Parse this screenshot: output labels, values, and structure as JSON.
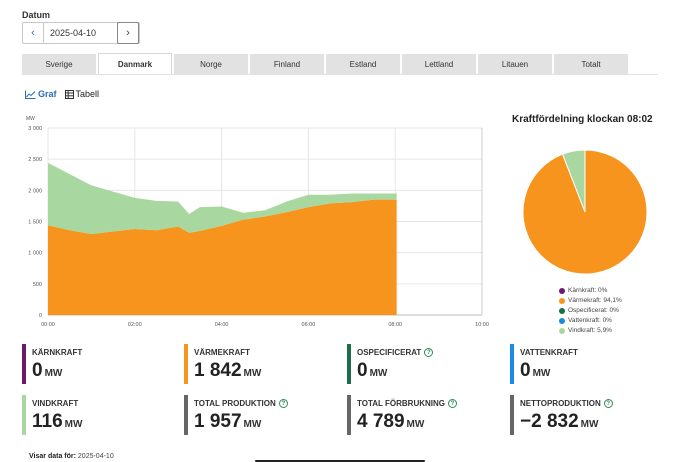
{
  "date": {
    "label": "Datum",
    "value": "2025-04-10",
    "prev_icon": "chevron-left-icon",
    "next_icon": "chevron-right-icon",
    "calendar_icon": "calendar-icon"
  },
  "tabs": [
    {
      "label": "Sverige",
      "active": false
    },
    {
      "label": "Danmark",
      "active": true
    },
    {
      "label": "Norge",
      "active": false
    },
    {
      "label": "Finland",
      "active": false
    },
    {
      "label": "Estland",
      "active": false
    },
    {
      "label": "Lettland",
      "active": false
    },
    {
      "label": "Litauen",
      "active": false
    },
    {
      "label": "Totalt",
      "active": false
    }
  ],
  "view": {
    "graph_label": "Graf",
    "table_label": "Tabell",
    "active": "graph"
  },
  "pie": {
    "title": "Kraftfördelning klockan 08:02",
    "legend": [
      {
        "label": "Kärnkraft: 0%",
        "color": "#6a1b6e"
      },
      {
        "label": "Värmekraft: 94,1%",
        "color": "#f7941d"
      },
      {
        "label": "Ospecificerat: 0%",
        "color": "#1b6e4a"
      },
      {
        "label": "Vattenkraft: 0%",
        "color": "#1e88e5"
      },
      {
        "label": "Vindkraft: 5,9%",
        "color": "#a8d8a0"
      }
    ]
  },
  "cards": [
    {
      "title": "KÄRNKRAFT",
      "value": "0",
      "unit": "MW",
      "color": "#6a1b6e",
      "help": false
    },
    {
      "title": "VÄRMEKRAFT",
      "value": "1 842",
      "unit": "MW",
      "color": "#f7941d",
      "help": false
    },
    {
      "title": "OSPECIFICERAT",
      "value": "0",
      "unit": "MW",
      "color": "#1b6e4a",
      "help": true
    },
    {
      "title": "VATTENKRAFT",
      "value": "0",
      "unit": "MW",
      "color": "#1e88e5",
      "help": false
    },
    {
      "title": "VINDKRAFT",
      "value": "116",
      "unit": "MW",
      "color": "#a8d8a0",
      "help": false
    },
    {
      "title": "TOTAL PRODUKTION",
      "value": "1 957",
      "unit": "MW",
      "color": "#666666",
      "help": true
    },
    {
      "title": "TOTAL FÖRBRUKNING",
      "value": "4 789",
      "unit": "MW",
      "color": "#666666",
      "help": true
    },
    {
      "title": "NETTOPRODUKTION",
      "value": "−2 832",
      "unit": "MW",
      "color": "#666666",
      "help": true
    }
  ],
  "footer": {
    "label": "Visar data för:",
    "date": "2025-04-10"
  },
  "chart_data": [
    {
      "type": "area",
      "stacked": true,
      "ylabel": "MW",
      "ylim": [
        0,
        3000
      ],
      "yticks": [
        "0",
        "500",
        "1 000",
        "1 500",
        "2 000",
        "2 500",
        "3 000"
      ],
      "xticks": [
        "00:00",
        "02:00",
        "04:00",
        "06:00",
        "08:00",
        "10:00"
      ],
      "grid": true,
      "x": [
        "00:00",
        "00:30",
        "01:00",
        "01:30",
        "02:00",
        "02:30",
        "03:00",
        "03:15",
        "03:30",
        "04:00",
        "04:30",
        "05:00",
        "05:30",
        "06:00",
        "06:30",
        "07:00",
        "07:30",
        "08:00",
        "08:02"
      ],
      "series": [
        {
          "color": "#f7941d",
          "values": [
            1440,
            1360,
            1300,
            1340,
            1380,
            1360,
            1420,
            1320,
            1350,
            1430,
            1530,
            1580,
            1650,
            1730,
            1790,
            1810,
            1850,
            1850,
            1842
          ]
        },
        {
          "color": "#a8d8a0",
          "values": [
            1000,
            900,
            780,
            640,
            500,
            470,
            400,
            300,
            380,
            310,
            110,
            100,
            170,
            200,
            140,
            140,
            100,
            100,
            116
          ]
        }
      ]
    },
    {
      "type": "pie",
      "categories": [
        "Kärnkraft",
        "Värmekraft",
        "Ospecificerat",
        "Vattenkraft",
        "Vindkraft"
      ],
      "values": [
        0,
        94.1,
        0,
        0,
        5.9
      ],
      "colors": [
        "#6a1b6e",
        "#f7941d",
        "#1b6e4a",
        "#1e88e5",
        "#a8d8a0"
      ]
    }
  ]
}
